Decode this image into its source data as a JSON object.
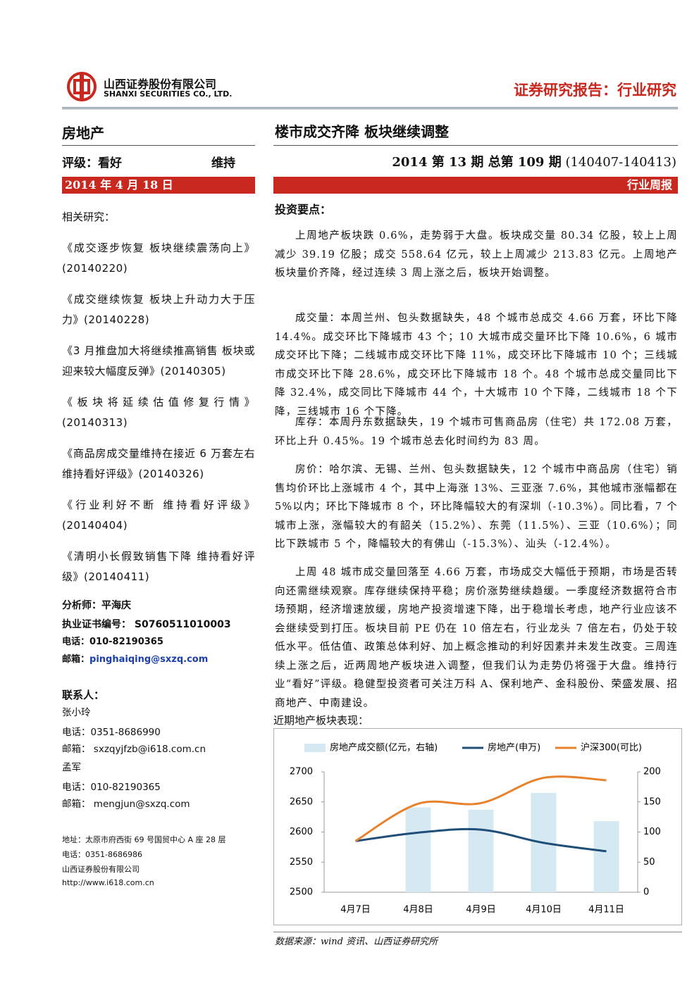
{
  "header": {
    "company_cn": "山西证券股份有限公司",
    "company_en": "SHANXI SECURITIES CO., LTD.",
    "report_type": "证券研究报告：行业研究"
  },
  "left": {
    "sector": "房地产",
    "rating": "评级：看好",
    "rating_action": "维持",
    "date": "2014 年 4 月 18 日",
    "related_title": "相关研究：",
    "related": [
      "《成交逐步恢复 板块继续震荡向上》(20140220)",
      "《成交继续恢复 板块上升动力大于压力》(20140228)",
      "《3 月推盘加大将继续推高销售 板块或迎来较大幅度反弹》(20140305)",
      "《板块将延续估值修复行情》(20140313)",
      "《商品房成交量维持在接近 6 万套左右 维持看好评级》(20140326)",
      "《行业利好不断 维持看好评级》(20140404)",
      "《清明小长假致销售下降 维持看好评级》(20140411)"
    ],
    "analyst": {
      "name": "分析师：平海庆",
      "cert": "执业证书编号： S0760511010003",
      "phone": "电话：010-82190365",
      "email_label": "邮箱：",
      "email": "pinghaiqing@sxzq.com"
    },
    "contacts_title": "联系人：",
    "contacts": [
      {
        "name": "张小玲",
        "phone": "电话：0351-8686990",
        "email": "邮箱： sxzqyjfzb@i618.com.cn"
      },
      {
        "name": "孟军",
        "phone": "电话：010-82190365",
        "email": "邮箱： mengjun@sxzq.com"
      }
    ],
    "address": [
      "地址：太原市府西街 69 号国贸中心 A 座 28 层",
      "电话：0351-8686986",
      "山西证券股份有限公司",
      "http://www.i618.com.cn"
    ]
  },
  "right": {
    "title": "楼市成交齐降 板块继续调整",
    "issue": "2014 第 13 期 总第 109 期",
    "period": "(140407-140413)",
    "report_kind": "行业周报",
    "highlights_title": "投资要点：",
    "paragraphs": [
      "上周地产板块跌 0.6%，走势弱于大盘。板块成交量 80.34 亿股，较上上周减少 39.19 亿股；成交 558.64 亿元，较上上周减少 213.83 亿元。上周地产板块量价齐降，经过连续 3 周上涨之后，板块开始调整。",
      "成交量：本周兰州、包头数据缺失，48 个城市总成交 4.66 万套，环比下降 14.4%。成交环比下降城市 43 个；10 大城市成交量环比下降 10.6%，6 城市成交环比下降；二线城市成交环比下降 11%，成交环比下降城市 10 个；三线城市成交环比下降 28.6%，成交环比下降城市 18 个。48 个城市总成交量同比下降 32.4%，成交同比下降城市 44 个，十大城市 10 个下降，二线城市 18 个下降，三线城市 16 个下降。",
      "库存：本周丹东数据缺失，19 个城市可售商品房（住宅）共 172.08 万套，环比上升 0.45%。19 个城市总去化时间约为 83 周。",
      "房价：哈尔滨、无锡、兰州、包头数据缺失，12 个城市中商品房（住宅）销售均价环比上涨城市 4 个，其中上海涨 13%、三亚涨 7.6%，其他城市涨幅都在 5%以内；环比下降城市 8 个，环比降幅较大的有深圳（-10.3%）。同比看，7 个城市上涨，涨幅较大的有韶关（15.2%）、东莞（11.5%）、三亚（10.6%）；同比下跌城市 5 个，降幅较大的有佛山（-15.3%）、汕头（-12.4%）。",
      "上周 48 城市成交量回落至 4.66 万套，市场成交大幅低于预期，市场是否转向还需继续观察。库存继续保持平稳；房价涨势继续趋缓。一季度经济数据符合市场预期，经济增速放缓，房地产投资增速下降，出于稳增长考虑，地产行业应该不会继续受到打压。板块目前 PE 仍在 10 倍左右，行业龙头 7 倍左右，仍处于较低水平。低估值、政策总体利好、加上概念推动的利好因素并未发生改变。三周连续上涨之后，近两周地产板块进入调整，但我们认为走势仍将强于大盘。维持行业“看好”评级。稳健型投资者可关注万科 A、保利地产、金科股份、荣盛发展、招商地产、中南建设。"
    ],
    "chart_caption": "近期地产板块表现：",
    "source": "数据来源：wind 资讯、山西证券研究所"
  },
  "chart_data": {
    "type": "combo",
    "categories": [
      "4月7日",
      "4月8日",
      "4月9日",
      "4月10日",
      "4月11日"
    ],
    "series": [
      {
        "name": "房地产成交额(亿元，右轴)",
        "type": "bar",
        "axis": "y2",
        "color": "#d5e9f3",
        "values": [
          null,
          141,
          137,
          165,
          118
        ]
      },
      {
        "name": "房地产(申万)",
        "type": "line",
        "color": "#1f4e79",
        "values": [
          2585,
          2599,
          2604,
          2582,
          2568
        ]
      },
      {
        "name": "沪深300(可比)",
        "type": "line",
        "color": "#e8812b",
        "values": [
          2585,
          2647,
          2648,
          2690,
          2686
        ]
      }
    ],
    "ylim": [
      2500,
      2700
    ],
    "yticks": [
      2500,
      2550,
      2600,
      2650,
      2700
    ],
    "y2lim": [
      0,
      200
    ],
    "y2ticks": [
      0,
      50,
      100,
      150,
      200
    ]
  }
}
